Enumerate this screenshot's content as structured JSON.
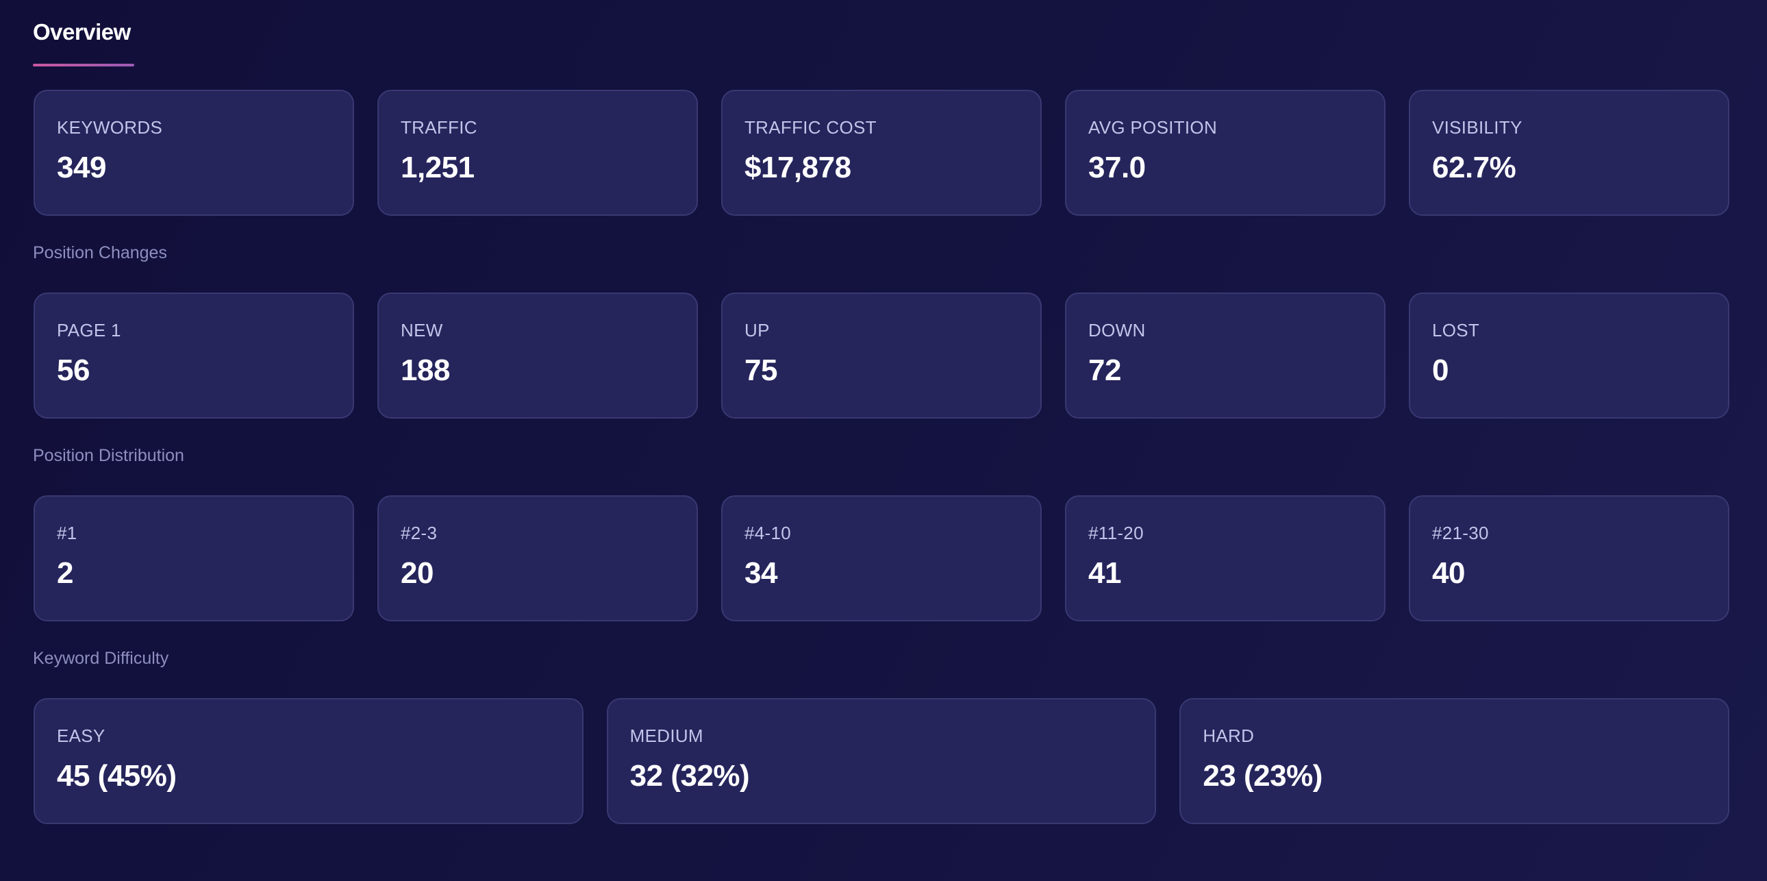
{
  "header": {
    "title": "Overview"
  },
  "overview": [
    {
      "label": "KEYWORDS",
      "value": "349"
    },
    {
      "label": "TRAFFIC",
      "value": "1,251"
    },
    {
      "label": "TRAFFIC COST",
      "value": "$17,878"
    },
    {
      "label": "AVG POSITION",
      "value": "37.0"
    },
    {
      "label": "VISIBILITY",
      "value": "62.7%"
    }
  ],
  "position_changes": {
    "title": "Position Changes",
    "items": [
      {
        "label": "PAGE 1",
        "value": "56"
      },
      {
        "label": "NEW",
        "value": "188"
      },
      {
        "label": "UP",
        "value": "75"
      },
      {
        "label": "DOWN",
        "value": "72"
      },
      {
        "label": "LOST",
        "value": "0"
      }
    ]
  },
  "position_distribution": {
    "title": "Position Distribution",
    "items": [
      {
        "label": "#1",
        "value": "2"
      },
      {
        "label": "#2-3",
        "value": "20"
      },
      {
        "label": "#4-10",
        "value": "34"
      },
      {
        "label": "#11-20",
        "value": "41"
      },
      {
        "label": "#21-30",
        "value": "40"
      }
    ]
  },
  "keyword_difficulty": {
    "title": "Keyword Difficulty",
    "items": [
      {
        "label": "EASY",
        "value": "45 (45%)"
      },
      {
        "label": "MEDIUM",
        "value": "32 (32%)"
      },
      {
        "label": "HARD",
        "value": "23 (23%)"
      }
    ]
  },
  "colors": {
    "background": "#12103c",
    "card": "#25245b",
    "accent": "#c8589f"
  }
}
